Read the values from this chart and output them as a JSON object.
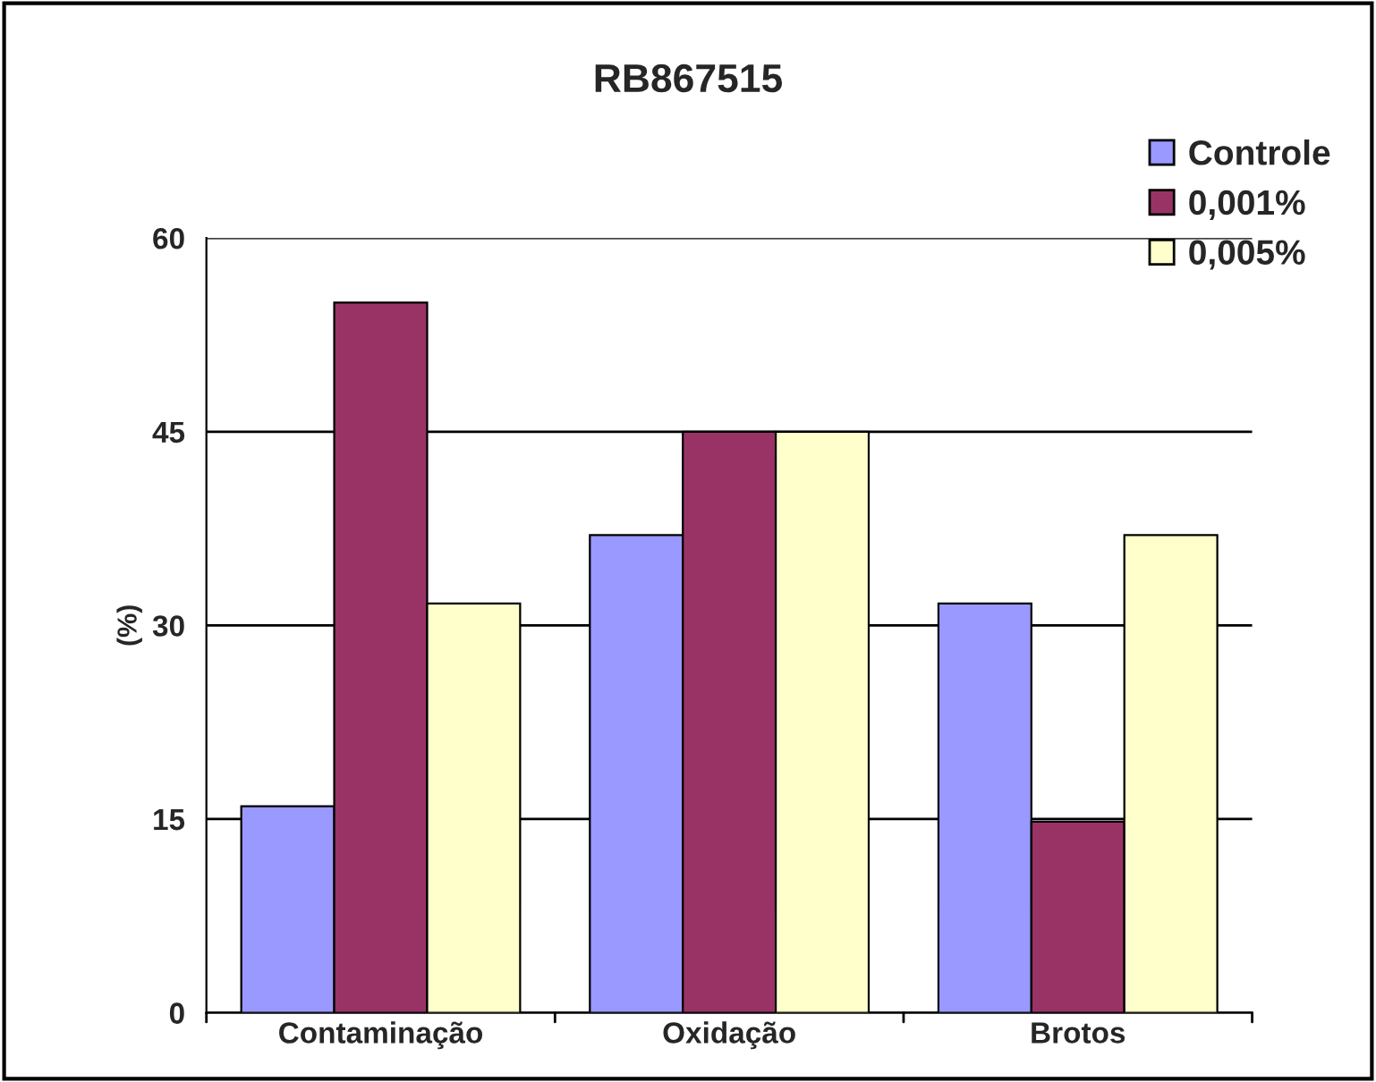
{
  "chart_data": {
    "type": "bar",
    "title": "RB867515",
    "ylabel": "(%)",
    "categories": [
      "Contaminação",
      "Oxidação",
      "Brotos"
    ],
    "series": [
      {
        "name": "Controle",
        "color": "#9999ff",
        "values": [
          16,
          37,
          31.7
        ]
      },
      {
        "name": "0,001%",
        "color": "#993366",
        "values": [
          55,
          45,
          14.8
        ]
      },
      {
        "name": "0,005%",
        "color": "#ffffcc",
        "values": [
          31.7,
          45,
          37
        ]
      }
    ],
    "ylim": [
      0,
      60
    ],
    "yticks": [
      0,
      15,
      30,
      45,
      60
    ],
    "grid": "y",
    "legend": "top right"
  }
}
